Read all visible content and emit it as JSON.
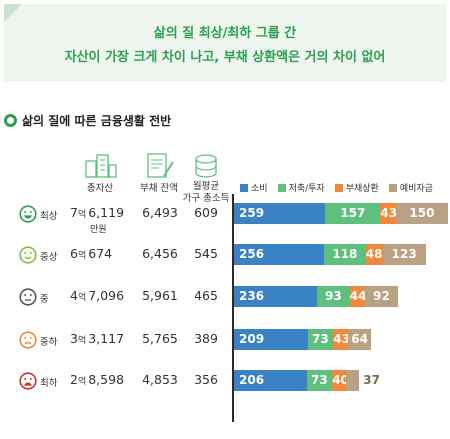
{
  "banner": {
    "line1": "삶의 질 최상/최하 그룹 간",
    "line2": "자산이 가장 크게 차이 나고, 부채 상환액은 거의 차이 없어"
  },
  "section_title": "삶의 질에 따른 금융생활 전반",
  "columns": {
    "assets": "총자산",
    "debt": "부채 잔액",
    "income_line1": "월평균",
    "income_line2": "가구 총소득"
  },
  "legend": [
    {
      "name": "소비",
      "color": "#3b82c4"
    },
    {
      "name": "저축/투자",
      "color": "#5fbf7d"
    },
    {
      "name": "부채상환",
      "color": "#f2893a"
    },
    {
      "name": "예비자금",
      "color": "#b9a184"
    }
  ],
  "assets_unit": "만원",
  "rows": [
    {
      "grade": "최상",
      "face": "very-happy-face-icon",
      "face_color": "#2e9e52",
      "assets_eok": "7",
      "eok_label": "억",
      "assets_rest": "6,119",
      "debt": "6,493",
      "income": "609",
      "spend": 259,
      "save": 157,
      "repay": 43,
      "reserve": 150
    },
    {
      "grade": "중상",
      "face": "happy-face-icon",
      "face_color": "#7cc242",
      "assets_eok": "6",
      "eok_label": "억",
      "assets_rest": "674",
      "debt": "6,456",
      "income": "545",
      "spend": 256,
      "save": 118,
      "repay": 48,
      "reserve": 123
    },
    {
      "grade": "중",
      "face": "neutral-face-icon",
      "face_color": "#555555",
      "assets_eok": "4",
      "eok_label": "억",
      "assets_rest": "7,096",
      "debt": "5,961",
      "income": "465",
      "spend": 236,
      "save": 93,
      "repay": 44,
      "reserve": 92
    },
    {
      "grade": "중하",
      "face": "sad-face-icon",
      "face_color": "#f2893a",
      "assets_eok": "3",
      "eok_label": "억",
      "assets_rest": "3,117",
      "debt": "5,765",
      "income": "389",
      "spend": 209,
      "save": 73,
      "repay": 43,
      "reserve": 64
    },
    {
      "grade": "최하",
      "face": "very-sad-face-icon",
      "face_color": "#c0392b",
      "assets_eok": "2",
      "eok_label": "억",
      "assets_rest": "8,598",
      "debt": "4,853",
      "income": "356",
      "spend": 206,
      "save": 73,
      "repay": 40,
      "reserve": 37
    }
  ],
  "chart_data": {
    "type": "bar",
    "orientation": "horizontal-stacked",
    "categories": [
      "최상",
      "중상",
      "중",
      "중하",
      "최하"
    ],
    "series": [
      {
        "name": "소비",
        "values": [
          259,
          256,
          236,
          209,
          206
        ]
      },
      {
        "name": "저축/투자",
        "values": [
          157,
          118,
          93,
          73,
          73
        ]
      },
      {
        "name": "부채상환",
        "values": [
          43,
          48,
          44,
          43,
          40
        ]
      },
      {
        "name": "예비자금",
        "values": [
          150,
          123,
          92,
          64,
          37
        ]
      }
    ],
    "legend": "top"
  }
}
